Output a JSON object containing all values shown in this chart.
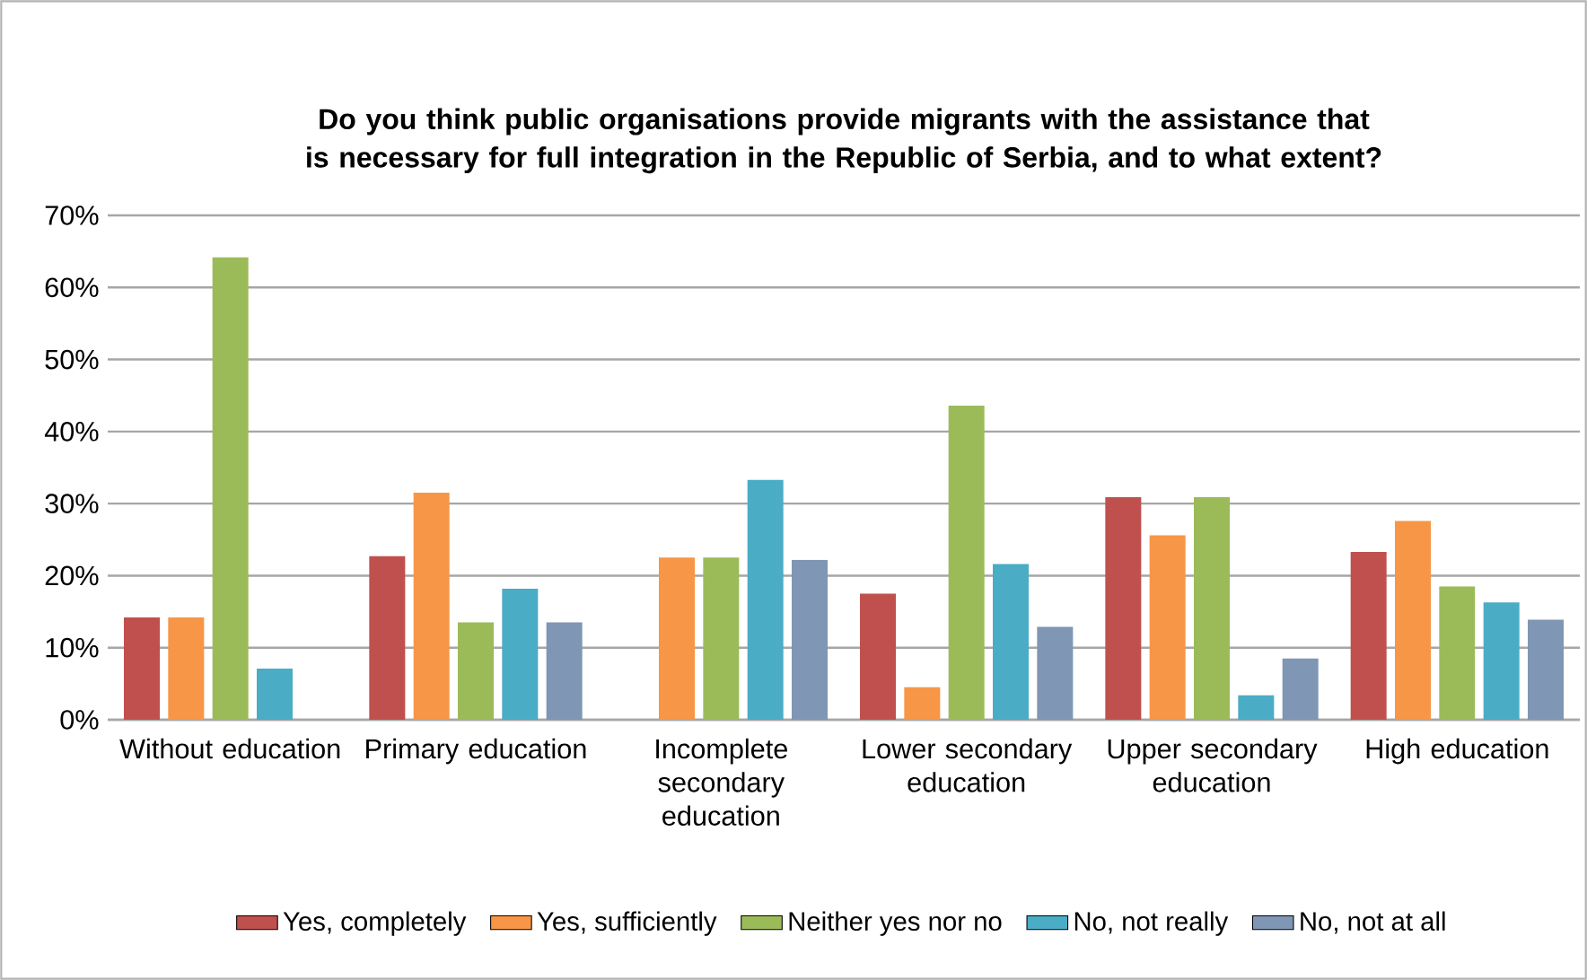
{
  "chart_data": {
    "type": "bar",
    "title": "Do you think public organisations provide migrants with the assistance that is necessary for full integration in the Republic of Serbia, and to what extent?",
    "categories": [
      "Without education",
      "Primary education",
      "Incomplete secondary education",
      "Lower secondary education",
      "Upper secondary education",
      "High education"
    ],
    "series": [
      {
        "name": "Yes, completely",
        "color": "#c0504d",
        "values": [
          14.2,
          22.7,
          0,
          17.5,
          30.9,
          23.3
        ]
      },
      {
        "name": "Yes, sufficiently",
        "color": "#f79646",
        "values": [
          14.2,
          31.5,
          22.5,
          4.5,
          25.6,
          27.6
        ]
      },
      {
        "name": "Neither yes nor no",
        "color": "#9bbb59",
        "values": [
          64.2,
          13.5,
          22.5,
          43.6,
          30.9,
          18.5
        ]
      },
      {
        "name": "No, not really",
        "color": "#4bacc6",
        "values": [
          7.1,
          18.2,
          33.3,
          21.6,
          3.4,
          16.3
        ]
      },
      {
        "name": "No, not at all",
        "color": "#7f96b4",
        "values": [
          0,
          13.5,
          22.2,
          12.9,
          8.5,
          13.9
        ]
      }
    ],
    "ylim": [
      0,
      70
    ],
    "yticks": [
      {
        "value": 0,
        "label": "0%"
      },
      {
        "value": 10,
        "label": "10%"
      },
      {
        "value": 20,
        "label": "20%"
      },
      {
        "value": 30,
        "label": "30%"
      },
      {
        "value": 40,
        "label": "40%"
      },
      {
        "value": 50,
        "label": "50%"
      },
      {
        "value": 60,
        "label": "60%"
      },
      {
        "value": 70,
        "label": "70%"
      }
    ],
    "grid": "y",
    "legend": "bottom"
  }
}
